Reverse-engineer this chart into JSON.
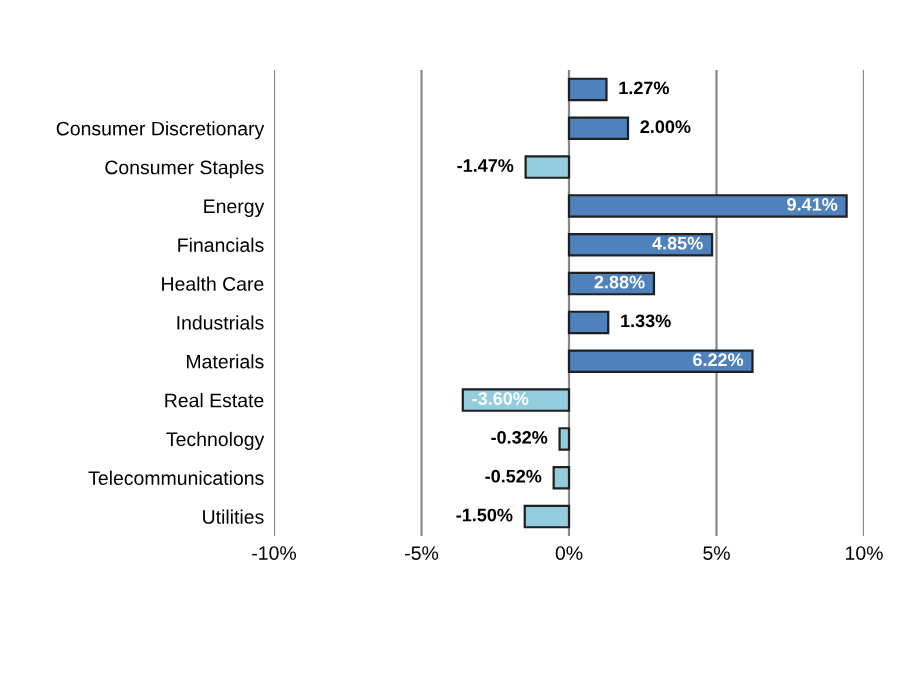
{
  "chart_data": {
    "type": "bar",
    "orientation": "horizontal",
    "categories": [
      null,
      "Consumer Discretionary",
      "Consumer Staples",
      "Energy",
      "Financials",
      "Health Care",
      "Industrials",
      "Materials",
      "Real Estate",
      "Technology",
      "Telecommunications",
      "Utilities"
    ],
    "values": [
      1.27,
      2.0,
      -1.47,
      9.41,
      4.85,
      2.88,
      1.33,
      6.22,
      -3.6,
      -0.32,
      -0.52,
      -1.5
    ],
    "colors": [
      "#4f81bd",
      "#4f81bd",
      "#93cddd",
      "#4f81bd",
      "#4f81bd",
      "#4f81bd",
      "#4f81bd",
      "#4f81bd",
      "#93cddd",
      "#93cddd",
      "#93cddd",
      "#93cddd"
    ],
    "value_labels": [
      "1.27%",
      "2.00%",
      "-1.47%",
      "9.41%",
      "4.85%",
      "2.88%",
      "1.33%",
      "6.22%",
      "-3.60%",
      "-0.32%",
      "-0.52%",
      "-1.50%"
    ],
    "xlim": [
      -10,
      10
    ],
    "xticks": [
      {
        "value": -10,
        "label": "-10%"
      },
      {
        "value": -5,
        "label": "-5%"
      },
      {
        "value": 0,
        "label": "0%"
      },
      {
        "value": 5,
        "label": "5%"
      },
      {
        "value": 10,
        "label": "10%"
      }
    ],
    "grid": "x",
    "legend": false
  }
}
